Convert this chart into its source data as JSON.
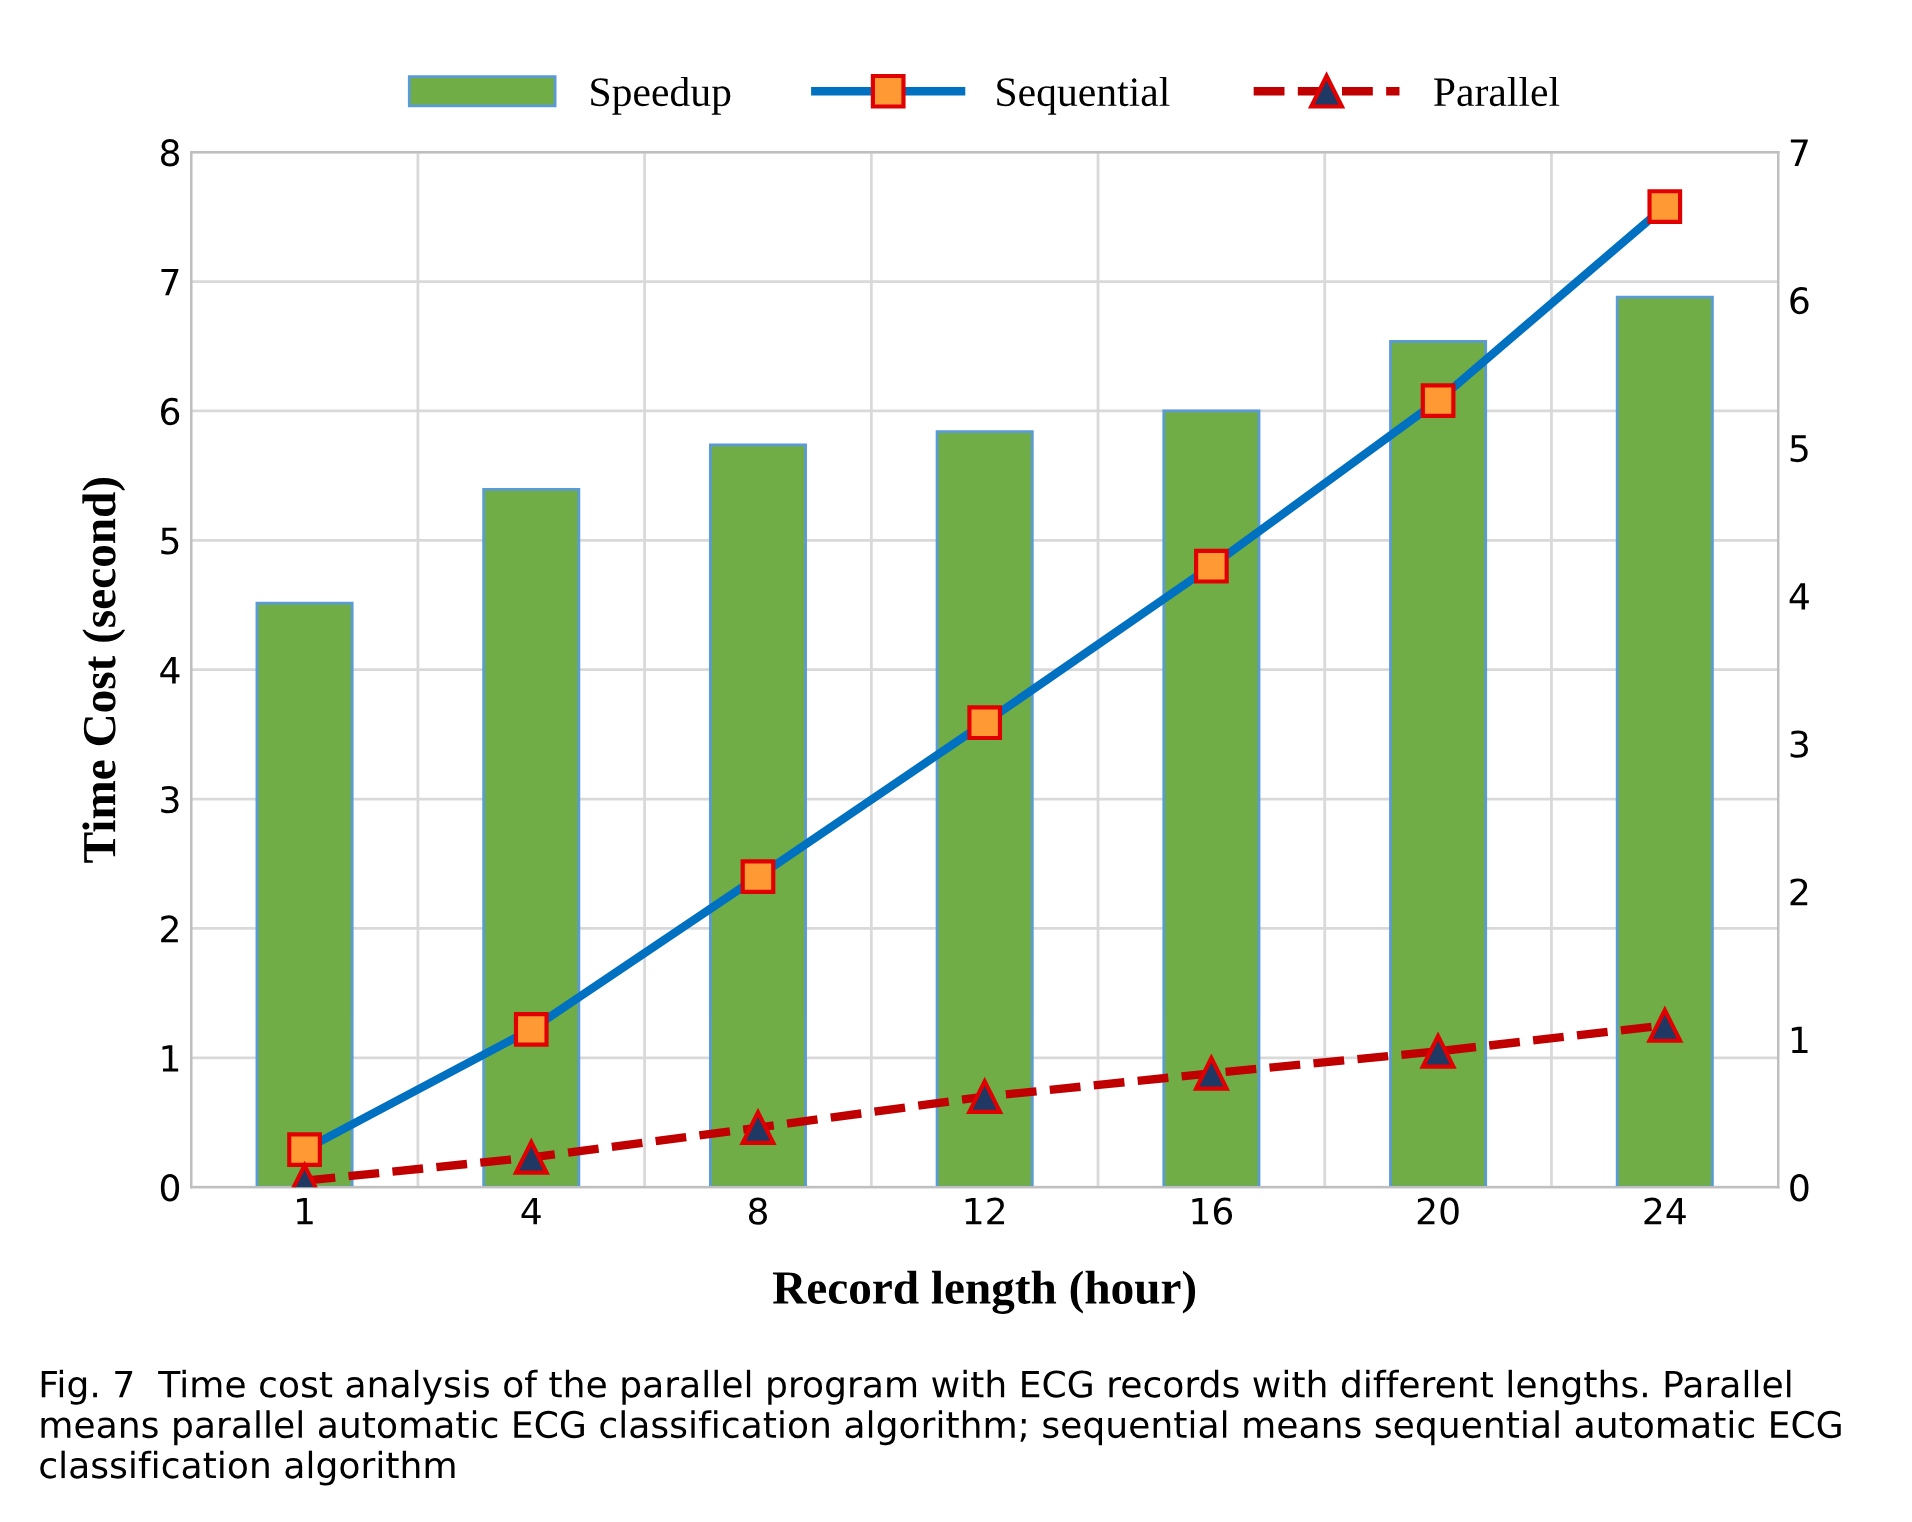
{
  "chart_data": {
    "type": "bar",
    "xlabel": "Record length (hour)",
    "ylabel": "Time Cost (second)",
    "categories": [
      "1",
      "4",
      "8",
      "12",
      "16",
      "20",
      "24"
    ],
    "series": [
      {
        "name": "Speedup",
        "axis": "y2",
        "color": "#70ad47",
        "values": [
          3.95,
          4.72,
          5.02,
          5.11,
          5.25,
          5.72,
          6.02
        ]
      },
      {
        "name": "Sequential",
        "type": "line",
        "color": "#0070c0",
        "marker": "square",
        "line_style": "solid",
        "values": [
          0.29,
          1.22,
          2.4,
          3.59,
          4.8,
          6.08,
          7.58
        ]
      },
      {
        "name": "Parallel",
        "type": "line",
        "color": "#c00000",
        "marker": "triangle",
        "line_style": "dashed",
        "values": [
          0.05,
          0.23,
          0.46,
          0.7,
          0.88,
          1.05,
          1.25
        ]
      }
    ],
    "ylim": [
      0,
      8
    ],
    "yticks": [
      0,
      1,
      2,
      3,
      4,
      5,
      6,
      7,
      8
    ],
    "y2lim": [
      0,
      7
    ],
    "y2ticks": [
      0,
      1,
      2,
      3,
      4,
      5,
      6,
      7
    ],
    "grid": true,
    "legend": "top",
    "annotations": [
      "Fig. 7  Time cost analysis of the parallel program with ECG records with different lengths. Parallel means parallel automatic ECG classification algorithm; sequential means sequential automatic ECG classification algorithm"
    ]
  }
}
